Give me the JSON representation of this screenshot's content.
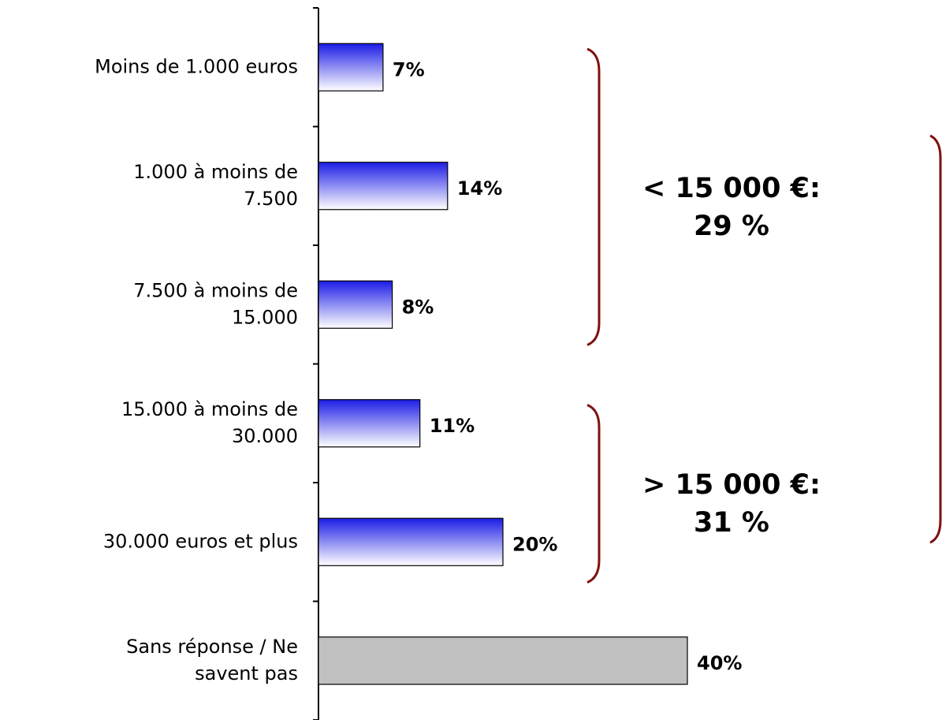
{
  "chart_data": {
    "type": "barh",
    "categories": [
      "Moins de 1.000 euros",
      "1.000 à moins de\n7.500",
      "7.500 à moins de\n15.000",
      "15.000 à moins de\n30.000",
      "30.000 euros et plus",
      "Sans réponse / Ne\nsavent pas"
    ],
    "values": [
      7,
      14,
      8,
      11,
      20,
      40
    ],
    "value_labels": [
      "7%",
      "14%",
      "8%",
      "11%",
      "20%",
      "40%"
    ],
    "colors": [
      "#1c1ce6",
      "#1c1ce6",
      "#1c1ce6",
      "#1c1ce6",
      "#1c1ce6",
      "#c0c0c0"
    ],
    "annotations": [
      {
        "text": "< 15 000 €:\n29 %",
        "from": 0,
        "to": 2
      },
      {
        "text": "> 15 000 €:\n31 %",
        "from": 3,
        "to": 4
      }
    ]
  }
}
